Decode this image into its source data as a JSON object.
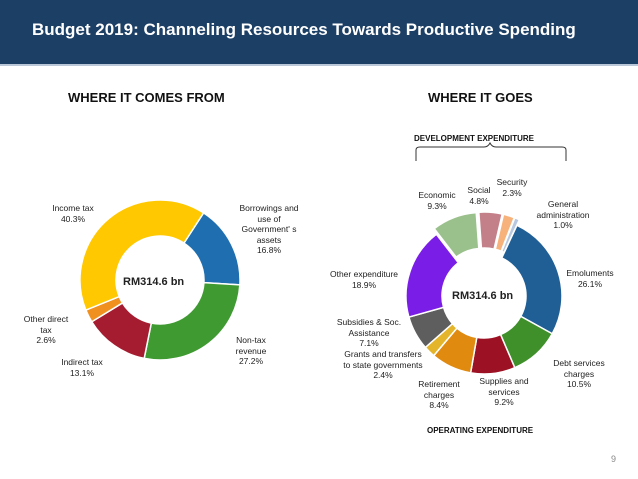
{
  "header": {
    "title": "Budget 2019: Channeling Resources Towards Productive Spending"
  },
  "page_number": "9",
  "chart_data": [
    {
      "type": "pie",
      "title": "WHERE IT COMES FROM",
      "center_label": "RM314.6 bn",
      "slices": [
        {
          "name": "Borrowings and use of Government' s assets",
          "value": 16.8,
          "value_label": "16.8%",
          "color": "#1f6fb0"
        },
        {
          "name": "Non-tax revenue",
          "value": 27.2,
          "value_label": "27.2%",
          "color": "#3f9a32"
        },
        {
          "name": "Indirect tax",
          "value": 13.1,
          "value_label": "13.1%",
          "color": "#a51c30"
        },
        {
          "name": "Other direct tax",
          "value": 2.6,
          "value_label": "2.6%",
          "color": "#f0901e"
        },
        {
          "name": "Income tax",
          "value": 40.3,
          "value_label": "40.3%",
          "color": "#ffc800"
        }
      ]
    },
    {
      "type": "pie",
      "title": "WHERE IT GOES",
      "center_label": "RM314.6 bn",
      "group_labels": {
        "top": "DEVELOPMENT EXPENDITURE",
        "bottom": "OPERATING EXPENDITURE"
      },
      "slices": [
        {
          "name": "Emoluments",
          "value": 26.1,
          "value_label": "26.1%",
          "color": "#1f5f96"
        },
        {
          "name": "Debt services charges",
          "value": 10.5,
          "value_label": "10.5%",
          "color": "#3f8f2a"
        },
        {
          "name": "Supplies and services",
          "value": 9.2,
          "value_label": "9.2%",
          "color": "#9c1224"
        },
        {
          "name": "Retirement charges",
          "value": 8.4,
          "value_label": "8.4%",
          "color": "#e08a10"
        },
        {
          "name": "Grants and transfers to state governments",
          "value": 2.4,
          "value_label": "2.4%",
          "color": "#e4b52a"
        },
        {
          "name": "Subsidies & Soc. Assistance",
          "value": 7.1,
          "value_label": "7.1%",
          "color": "#5e5e5e"
        },
        {
          "name": "Other expenditure",
          "value": 18.9,
          "value_label": "18.9%",
          "color": "#7a1de6"
        },
        {
          "name": "Economic",
          "value": 9.3,
          "value_label": "9.3%",
          "color": "#9ac08c",
          "exploded": true
        },
        {
          "name": "Social",
          "value": 4.8,
          "value_label": "4.8%",
          "color": "#c38088",
          "exploded": true
        },
        {
          "name": "Security",
          "value": 2.3,
          "value_label": "2.3%",
          "color": "#f6b27a",
          "exploded": true
        },
        {
          "name": "General administration",
          "value": 1.0,
          "value_label": "1.0%",
          "color": "#b8c8e0",
          "exploded": true
        }
      ]
    }
  ],
  "labels": {
    "left": {
      "borrowings_name": "Borrowings and use of Government' s assets",
      "borrowings_value": "16.8%",
      "nontax_name": "Non-tax revenue",
      "nontax_value": "27.2%",
      "indirect_name": "Indirect tax",
      "indirect_value": "13.1%",
      "otherdirect_name": "Other direct tax",
      "otherdirect_value": "2.6%",
      "income_name": "Income tax",
      "income_value": "40.3%"
    },
    "right": {
      "emoluments_name": "Emoluments",
      "emoluments_value": "26.1%",
      "debt_name": "Debt services charges",
      "debt_value": "10.5%",
      "supplies_name": "Supplies and services",
      "supplies_value": "9.2%",
      "retirement_name": "Retirement charges",
      "retirement_value": "8.4%",
      "grants_name": "Grants and transfers to state governments",
      "grants_value": "2.4%",
      "subsidies_name": "Subsidies & Soc. Assistance",
      "subsidies_value": "7.1%",
      "other_name": "Other expenditure",
      "other_value": "18.9%",
      "economic_name": "Economic",
      "economic_value": "9.3%",
      "social_name": "Social",
      "social_value": "4.8%",
      "security_name": "Security",
      "security_value": "2.3%",
      "genadmin_name": "General administration",
      "genadmin_value": "1.0%"
    }
  }
}
